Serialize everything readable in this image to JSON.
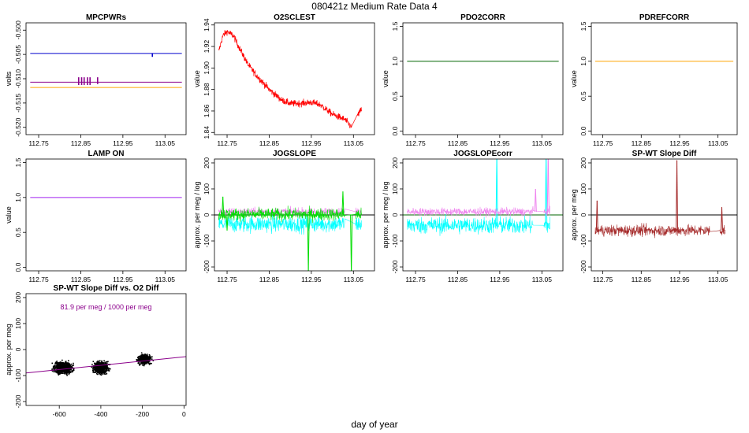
{
  "page": {
    "title": "080421z   Medium Rate Data 4",
    "xlabel": "day of year"
  },
  "colors": {
    "blue": "#0000cc",
    "purple": "#8b008b",
    "orange": "#ffa500",
    "red": "#ff0000",
    "green": "#006400",
    "brightgreen": "#00dd00",
    "violet": "#ee82ee",
    "cyan": "#00ffff",
    "brown": "#a52a2a",
    "lampviolet": "#a020f0",
    "black": "#000000"
  },
  "chart_data": [
    {
      "id": "mpcpwrs",
      "type": "line",
      "title": "MPCPWRs",
      "ylabel": "volts",
      "xlim": [
        112.72,
        113.1
      ],
      "ylim": [
        -0.5215,
        -0.4985
      ],
      "xticks": [
        112.75,
        112.85,
        112.95,
        113.05
      ],
      "xtick_labels": [
        "112.75",
        "112.85",
        "112.95",
        "113.05"
      ],
      "yticks": [
        -0.5,
        -0.505,
        -0.51,
        -0.515,
        -0.52
      ],
      "ytick_labels": [
        "-0.500",
        "-0.505",
        "-0.510",
        "-0.515",
        "-0.520"
      ],
      "series": [
        {
          "name": "blue",
          "color": "blue",
          "x": [
            112.73,
            113.09
          ],
          "y": [
            -0.5048,
            -0.5048
          ],
          "spikes": [
            {
              "x": 113.02,
              "y0": -0.5048,
              "y1": -0.5055
            }
          ]
        },
        {
          "name": "purple",
          "color": "purple",
          "x": [
            112.73,
            113.09
          ],
          "y": [
            -0.5107,
            -0.5107
          ],
          "spikes": [
            {
              "x": 112.845,
              "y0": -0.5097,
              "y1": -0.5113
            },
            {
              "x": 112.852,
              "y0": -0.5097,
              "y1": -0.5113
            },
            {
              "x": 112.858,
              "y0": -0.5097,
              "y1": -0.5113
            },
            {
              "x": 112.866,
              "y0": -0.5097,
              "y1": -0.5113
            },
            {
              "x": 112.872,
              "y0": -0.5097,
              "y1": -0.5113
            },
            {
              "x": 112.89,
              "y0": -0.5097,
              "y1": -0.5111
            }
          ]
        },
        {
          "name": "orange",
          "color": "orange",
          "x": [
            112.73,
            113.09
          ],
          "y": [
            -0.5118,
            -0.5118
          ]
        }
      ]
    },
    {
      "id": "o2sclest",
      "type": "line",
      "title": "O2SCLEST",
      "ylabel": "value",
      "xlim": [
        112.72,
        113.1
      ],
      "ylim": [
        1.838,
        1.942
      ],
      "xticks": [
        112.75,
        112.85,
        112.95,
        113.05
      ],
      "xtick_labels": [
        "112.75",
        "112.85",
        "112.95",
        "113.05"
      ],
      "yticks": [
        1.84,
        1.86,
        1.88,
        1.9,
        1.92,
        1.94
      ],
      "ytick_labels": [
        "1.84",
        "1.86",
        "1.88",
        "1.90",
        "1.92",
        "1.94"
      ],
      "series": [
        {
          "name": "O2SCLEST",
          "color": "red",
          "noise": 0.0035,
          "x": [
            112.73,
            112.74,
            112.75,
            112.765,
            112.78,
            112.8,
            112.82,
            112.85,
            112.88,
            112.9,
            112.92,
            112.95,
            112.97,
            113.0,
            113.03,
            113.045,
            113.06,
            113.07
          ],
          "y": [
            1.915,
            1.93,
            1.934,
            1.93,
            1.918,
            1.903,
            1.893,
            1.88,
            1.87,
            1.867,
            1.867,
            1.868,
            1.866,
            1.857,
            1.852,
            1.845,
            1.856,
            1.862
          ],
          "gap": [
            113.035,
            113.055
          ]
        }
      ]
    },
    {
      "id": "pdo2corr",
      "type": "line",
      "title": "PDO2CORR",
      "ylabel": "value",
      "xlim": [
        112.72,
        113.1
      ],
      "ylim": [
        -0.05,
        1.55
      ],
      "xticks": [
        112.75,
        112.85,
        112.95,
        113.05
      ],
      "xtick_labels": [
        "112.75",
        "112.85",
        "112.95",
        "113.05"
      ],
      "yticks": [
        0.0,
        0.5,
        1.0,
        1.5
      ],
      "ytick_labels": [
        "0.0",
        "0.5",
        "1.0",
        "1.5"
      ],
      "series": [
        {
          "name": "PDO2CORR",
          "color": "green",
          "x": [
            112.73,
            113.09
          ],
          "y": [
            1.0,
            1.0
          ]
        }
      ]
    },
    {
      "id": "pdrefcorr",
      "type": "line",
      "title": "PDREFCORR",
      "ylabel": "value",
      "xlim": [
        112.72,
        113.1
      ],
      "ylim": [
        -0.05,
        1.55
      ],
      "xticks": [
        112.75,
        112.85,
        112.95,
        113.05
      ],
      "xtick_labels": [
        "112.75",
        "112.85",
        "112.95",
        "113.05"
      ],
      "yticks": [
        0.0,
        0.5,
        1.0,
        1.5
      ],
      "ytick_labels": [
        "0.0",
        "0.5",
        "1.0",
        "1.5"
      ],
      "series": [
        {
          "name": "PDREFCORR",
          "color": "orange",
          "x": [
            112.73,
            113.09
          ],
          "y": [
            1.0,
            1.0
          ]
        }
      ]
    },
    {
      "id": "lampon",
      "type": "line",
      "title": "LAMP ON",
      "ylabel": "value",
      "xlim": [
        112.72,
        113.1
      ],
      "ylim": [
        -0.05,
        1.55
      ],
      "xticks": [
        112.75,
        112.85,
        112.95,
        113.05
      ],
      "xtick_labels": [
        "112.75",
        "112.85",
        "112.95",
        "113.05"
      ],
      "yticks": [
        0.0,
        0.5,
        1.0,
        1.5
      ],
      "ytick_labels": [
        "0.0",
        "0.5",
        "1.0",
        "1.5"
      ],
      "series": [
        {
          "name": "LAMP ON",
          "color": "lampviolet",
          "x": [
            112.73,
            113.09
          ],
          "y": [
            1.0,
            1.0
          ]
        }
      ]
    },
    {
      "id": "jogslope",
      "type": "line",
      "title": "JOGSLOPE",
      "ylabel": "approx. per meg / log",
      "xlim": [
        112.72,
        113.1
      ],
      "ylim": [
        -215,
        215
      ],
      "xticks": [
        112.75,
        112.85,
        112.95,
        113.05
      ],
      "xtick_labels": [
        "112.75",
        "112.85",
        "112.95",
        "113.05"
      ],
      "yticks": [
        -200,
        -100,
        0,
        100,
        200
      ],
      "ytick_labels": [
        "-200",
        "-100",
        "0",
        "100",
        "200"
      ],
      "zero_line": true,
      "series": [
        {
          "name": "cyan",
          "color": "cyan",
          "mean": -35,
          "noise": 30,
          "x0": 112.73,
          "x1": 113.03,
          "x2": 113.055,
          "x3": 113.07
        },
        {
          "name": "violet",
          "color": "violet",
          "mean": 12,
          "noise": 14,
          "x0": 112.73,
          "x1": 113.03,
          "x2": 113.055,
          "x3": 113.07
        },
        {
          "name": "green",
          "color": "brightgreen",
          "mean": 2,
          "noise": 22,
          "x0": 112.73,
          "x1": 113.03,
          "x2": 113.055,
          "x3": 113.07,
          "outliers": [
            {
              "x": 112.74,
              "y": 70
            },
            {
              "x": 112.75,
              "y": -60
            },
            {
              "x": 112.943,
              "y": -220
            },
            {
              "x": 113.025,
              "y": 90
            },
            {
              "x": 113.045,
              "y": -230
            }
          ]
        }
      ]
    },
    {
      "id": "jogslopecorr",
      "type": "line",
      "title": "JOGSLOPEcorr",
      "ylabel": "approx. per meg / log",
      "xlim": [
        112.72,
        113.1
      ],
      "ylim": [
        -215,
        215
      ],
      "xticks": [
        112.75,
        112.85,
        112.95,
        113.05
      ],
      "xtick_labels": [
        "112.75",
        "112.85",
        "112.95",
        "113.05"
      ],
      "yticks": [
        -200,
        -100,
        0,
        100,
        200
      ],
      "ytick_labels": [
        "-200",
        "-100",
        "0",
        "100",
        "200"
      ],
      "zero_line": true,
      "zero_color": "green",
      "series": [
        {
          "name": "cyan",
          "color": "cyan",
          "mean": -40,
          "noise": 30,
          "x0": 112.73,
          "x1": 113.03,
          "x2": 113.055,
          "x3": 113.07,
          "outliers": [
            {
              "x": 112.943,
              "y": 230
            },
            {
              "x": 113.06,
              "y": 230
            }
          ]
        },
        {
          "name": "violet",
          "color": "violet",
          "mean": 12,
          "noise": 14,
          "x0": 112.73,
          "x1": 113.03,
          "x2": 113.055,
          "x3": 113.07,
          "outliers": [
            {
              "x": 113.035,
              "y": 100
            },
            {
              "x": 113.065,
              "y": 230
            }
          ]
        }
      ]
    },
    {
      "id": "spwtslope",
      "type": "line",
      "title": "SP-WT Slope Diff",
      "ylabel": "approx. per meg",
      "xlim": [
        112.72,
        113.1
      ],
      "ylim": [
        -215,
        215
      ],
      "xticks": [
        112.75,
        112.85,
        112.95,
        113.05
      ],
      "xtick_labels": [
        "112.75",
        "112.85",
        "112.95",
        "113.05"
      ],
      "yticks": [
        -200,
        -100,
        0,
        100,
        200
      ],
      "ytick_labels": [
        "-200",
        "-100",
        "0",
        "100",
        "200"
      ],
      "zero_line": true,
      "zero_color": "black",
      "series": [
        {
          "name": "SP-WT",
          "color": "brown",
          "mean": -60,
          "noise": 20,
          "x0": 112.73,
          "x1": 113.03,
          "x2": 113.055,
          "x3": 113.07,
          "outliers": [
            {
              "x": 112.735,
              "y": 55
            },
            {
              "x": 112.943,
              "y": 210
            },
            {
              "x": 113.06,
              "y": 30
            }
          ]
        }
      ]
    },
    {
      "id": "scatter",
      "type": "scatter",
      "title": "SP-WT Slope Diff vs. O2 Diff",
      "ylabel": "approx. per meg",
      "annotation": "81.9 per meg / 1000 per meg",
      "xlim": [
        -760,
        10
      ],
      "ylim": [
        -215,
        215
      ],
      "xticks": [
        -600,
        -400,
        -200,
        0
      ],
      "xtick_labels": [
        "-600",
        "-400",
        "-200",
        "0"
      ],
      "yticks": [
        -200,
        -100,
        0,
        100,
        200
      ],
      "ytick_labels": [
        "-200",
        "-100",
        "0",
        "100",
        "200"
      ],
      "regression": {
        "slope": 0.0819,
        "intercept": -28,
        "color": "purple"
      },
      "clusters": [
        {
          "center_x": -580,
          "spread_x": 35,
          "center_y": -70,
          "spread_y": 18,
          "count": 700
        },
        {
          "center_x": -400,
          "spread_x": 28,
          "center_y": -70,
          "spread_y": 18,
          "count": 650
        },
        {
          "center_x": -190,
          "spread_x": 25,
          "center_y": -38,
          "spread_y": 15,
          "count": 500
        }
      ]
    }
  ]
}
